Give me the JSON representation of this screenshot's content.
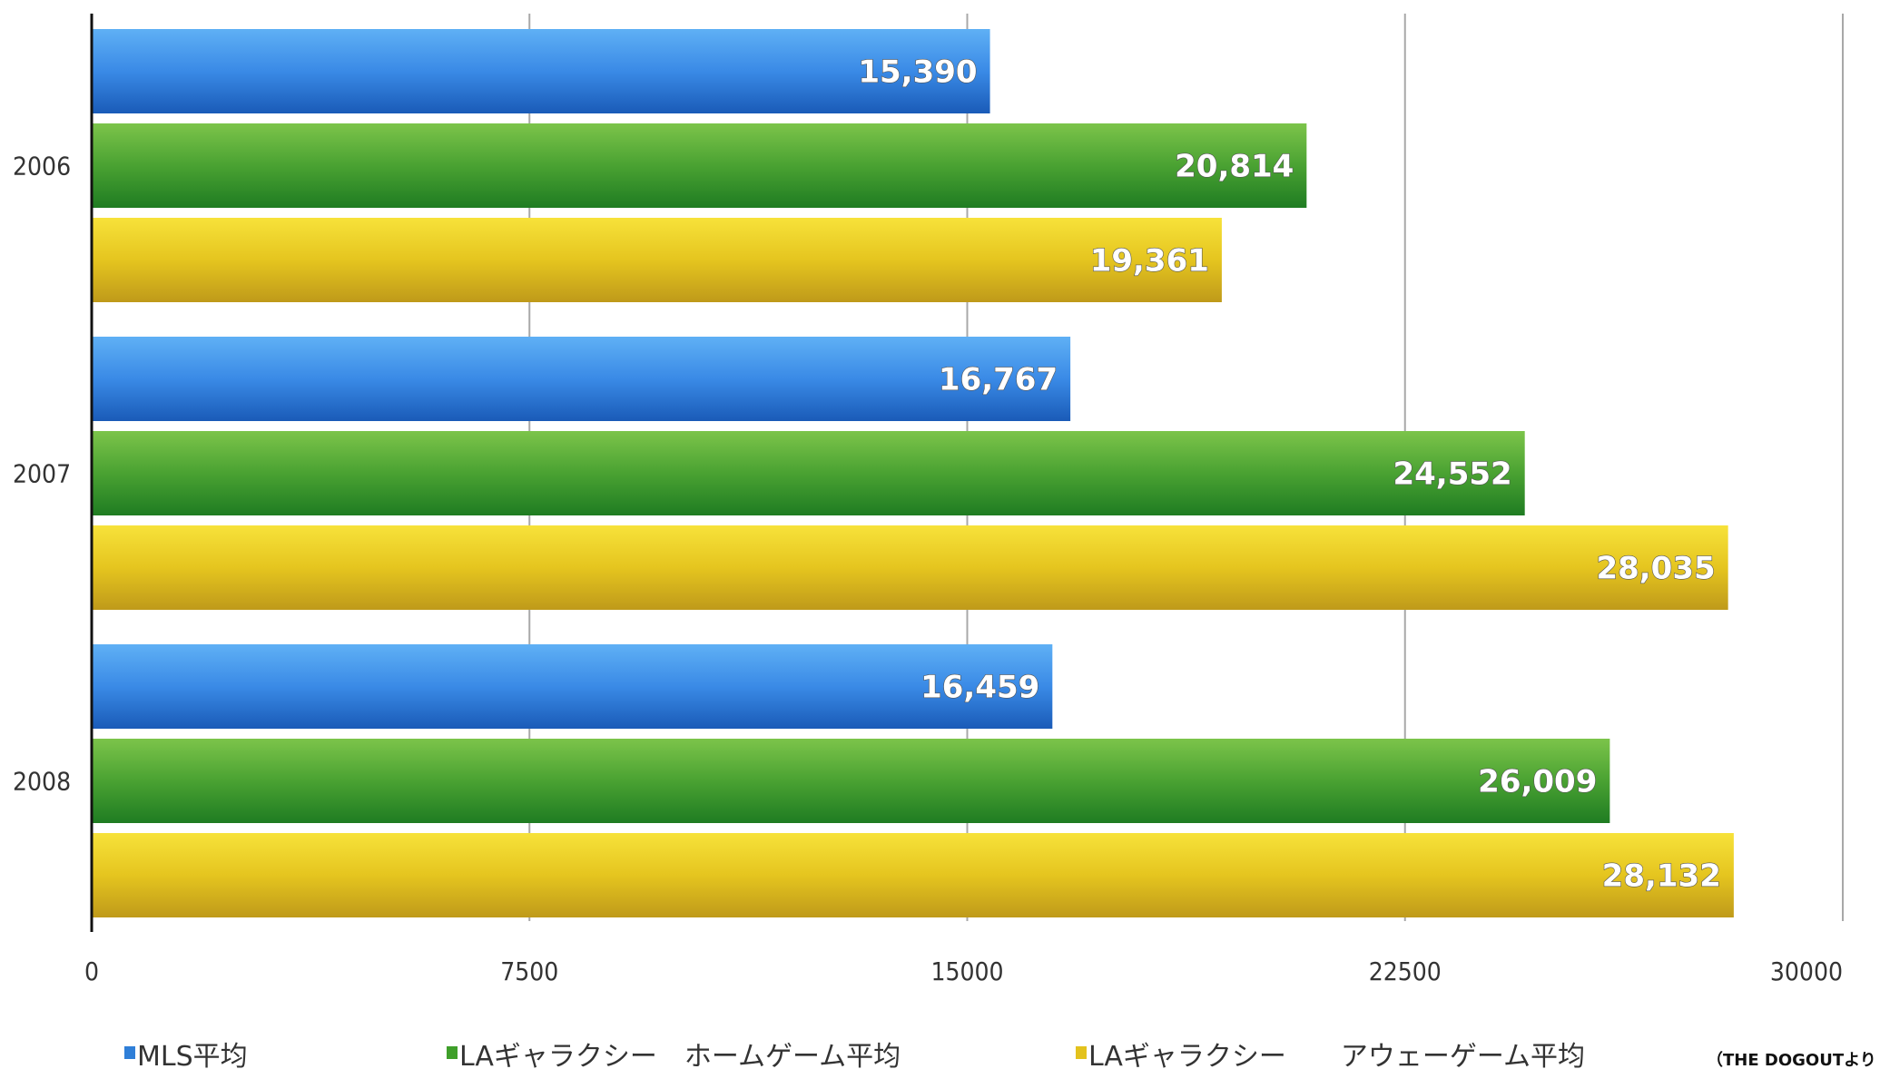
{
  "chart_data": {
    "type": "bar",
    "orientation": "horizontal",
    "categories": [
      "2006",
      "2007",
      "2008"
    ],
    "series": [
      {
        "name": "MLS平均",
        "values": [
          15390,
          16767,
          16459
        ],
        "labels": [
          "15,390",
          "16,767",
          "16,459"
        ],
        "color": "#2f7fd8"
      },
      {
        "name": "LAギャラクシー　ホームゲーム平均",
        "values": [
          20814,
          24552,
          26009
        ],
        "labels": [
          "20,814",
          "24,552",
          "26,009"
        ],
        "color": "#3f9f2a"
      },
      {
        "name": "LAギャラクシー　　アウェーゲーム平均",
        "values": [
          19361,
          28035,
          28132
        ],
        "labels": [
          "19,361",
          "28,035",
          "28,132"
        ],
        "color": "#e3c21d"
      }
    ],
    "x_ticks": [
      "0",
      "7500",
      "15000",
      "22500",
      "30000"
    ],
    "xlim": [
      0,
      30000
    ],
    "grid": true,
    "legend_position": "bottom",
    "note": "（THE DOGOUTより"
  }
}
